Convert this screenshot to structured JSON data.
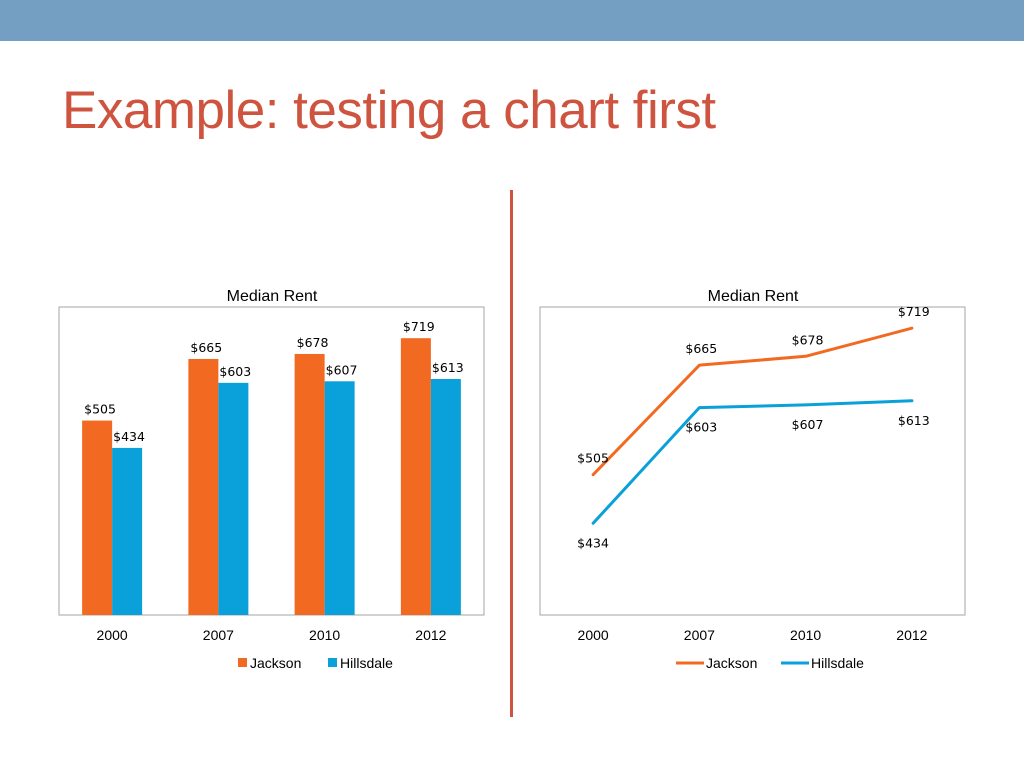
{
  "slide": {
    "title": "Example: testing a chart first",
    "accent_color": "#cf543f",
    "band_color": "#759fc2"
  },
  "chart_data": [
    {
      "type": "bar",
      "title": "Median Rent",
      "categories": [
        "2000",
        "2007",
        "2010",
        "2012"
      ],
      "series": [
        {
          "name": "Jackson",
          "values": [
            505,
            665,
            678,
            719
          ],
          "labels": [
            "$505",
            "$665",
            "$678",
            "$719"
          ],
          "color": "#f26a21"
        },
        {
          "name": "Hillsdale",
          "values": [
            434,
            603,
            607,
            613
          ],
          "labels": [
            "$434",
            "$603",
            "$607",
            "$613"
          ],
          "color": "#0aa0d9"
        }
      ],
      "ylim": [
        0,
        800
      ],
      "grid": false,
      "legend": "bottom"
    },
    {
      "type": "line",
      "title": "Median Rent",
      "categories": [
        "2000",
        "2007",
        "2010",
        "2012"
      ],
      "series": [
        {
          "name": "Jackson",
          "values": [
            505,
            665,
            678,
            719
          ],
          "labels": [
            "$505",
            "$665",
            "$678",
            "$719"
          ],
          "color": "#f26a21"
        },
        {
          "name": "Hillsdale",
          "values": [
            434,
            603,
            607,
            613
          ],
          "labels": [
            "$434",
            "$603",
            "$607",
            "$613"
          ],
          "color": "#0aa0d9"
        }
      ],
      "ylim": [
        300,
        750
      ],
      "grid": false,
      "legend": "bottom"
    }
  ]
}
